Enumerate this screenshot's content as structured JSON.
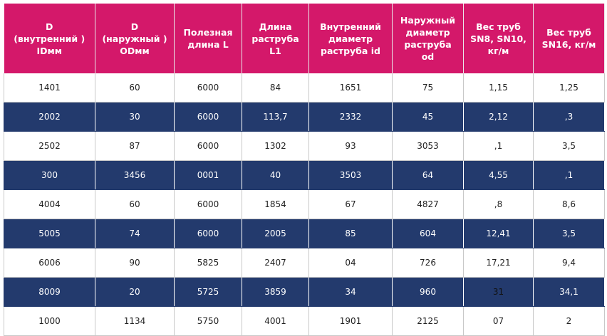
{
  "table": {
    "header": [
      "D\n(внутренний )\nIDмм",
      "D\n(наружный )\nODмм",
      "Полезная\nдлина L",
      "Длина\nраструба\nL1",
      "Внутренний\nдиаметр\nраструба id",
      "Наружный\nдиаметр\nраструба\nod",
      "Вес труб\nSN8, SN10,\nкг/м",
      "Вес труб\nSN16, кг/м"
    ],
    "rows": [
      [
        "1401",
        "60",
        "6000",
        "84",
        "1651",
        "75",
        "1,15",
        "1,25"
      ],
      [
        "2002",
        "30",
        "6000",
        "113,7",
        "2332",
        "45",
        "2,12",
        ",3"
      ],
      [
        "2502",
        "87",
        "6000",
        "1302",
        "93",
        "3053",
        ",1",
        "3,5"
      ],
      [
        "300",
        "3456",
        "0001",
        "40",
        "3503",
        "64",
        "4,55",
        ",1"
      ],
      [
        "4004",
        "60",
        "6000",
        "1854",
        "67",
        "4827",
        ",8",
        "8,6"
      ],
      [
        "5005",
        "74",
        "6000",
        "2005",
        "85",
        "604",
        "12,41",
        "3,5"
      ],
      [
        "6006",
        "90",
        "5825",
        "2407",
        "04",
        "726",
        "17,21",
        "9,4"
      ],
      [
        "8009",
        "20",
        "5725",
        "3859",
        "34",
        "960",
        "31",
        "34,1"
      ],
      [
        "1000",
        "1134",
        "5750",
        "4001",
        "1901",
        "2125",
        "07",
        "2"
      ]
    ]
  }
}
